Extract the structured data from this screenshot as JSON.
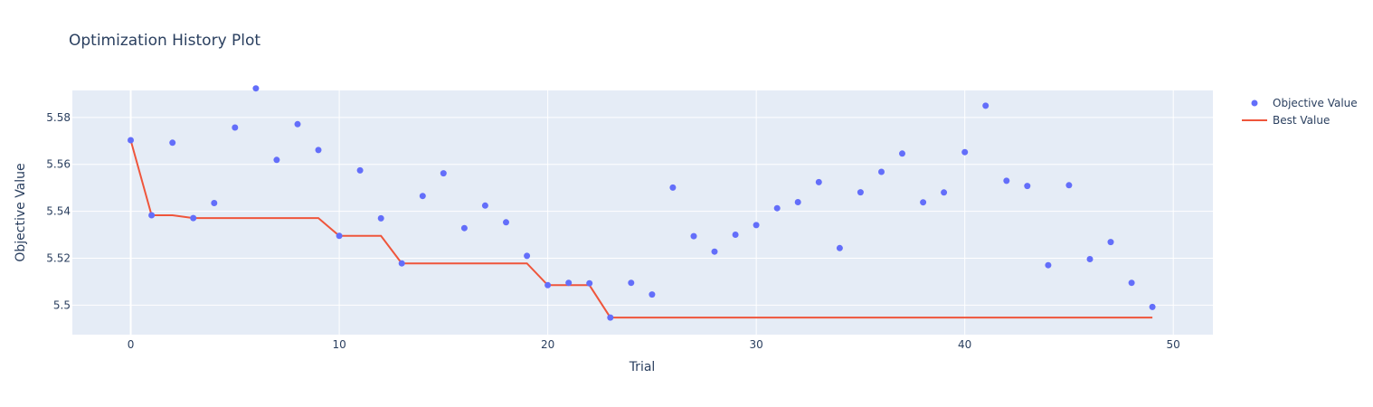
{
  "chart_data": {
    "type": "scatter",
    "title": "Optimization History Plot",
    "xlabel": "Trial",
    "ylabel": "Objective Value",
    "xlim": [
      -2.8,
      51.9
    ],
    "ylim": [
      5.4874,
      5.5915
    ],
    "xticks": [
      0,
      10,
      20,
      30,
      40,
      50
    ],
    "xtick_labels": [
      "0",
      "10",
      "20",
      "30",
      "40",
      "50"
    ],
    "yticks": [
      5.5,
      5.52,
      5.54,
      5.56,
      5.58
    ],
    "ytick_labels": [
      "5.5",
      "5.52",
      "5.54",
      "5.56",
      "5.58"
    ],
    "grid": true,
    "legend_position": "top-right",
    "series": [
      {
        "name": "Objective Value",
        "mode": "markers",
        "color": "#636efa",
        "x": [
          0,
          1,
          2,
          3,
          4,
          5,
          6,
          7,
          8,
          9,
          10,
          11,
          12,
          13,
          14,
          15,
          16,
          17,
          18,
          19,
          20,
          21,
          22,
          23,
          24,
          25,
          26,
          27,
          28,
          29,
          30,
          31,
          32,
          33,
          34,
          35,
          36,
          37,
          38,
          39,
          40,
          41,
          42,
          43,
          44,
          45,
          46,
          47,
          48,
          49
        ],
        "y": [
          5.5703,
          5.5383,
          5.5692,
          5.5371,
          5.5435,
          5.5757,
          5.5924,
          5.5619,
          5.5771,
          5.5661,
          5.5295,
          5.5574,
          5.537,
          5.5178,
          5.5465,
          5.5562,
          5.5328,
          5.5424,
          5.5353,
          5.521,
          5.5085,
          5.5095,
          5.5093,
          5.4947,
          5.5095,
          5.5045,
          5.5501,
          5.5294,
          5.5228,
          5.53,
          5.5341,
          5.5413,
          5.5439,
          5.5524,
          5.5243,
          5.5481,
          5.5568,
          5.5646,
          5.5438,
          5.548,
          5.5652,
          5.585,
          5.553,
          5.5508,
          5.517,
          5.5511,
          5.5196,
          5.5269,
          5.5095,
          5.4992
        ]
      },
      {
        "name": "Best Value",
        "mode": "lines",
        "color": "#ef553b",
        "x": [
          0,
          1,
          2,
          3,
          4,
          5,
          6,
          7,
          8,
          9,
          10,
          11,
          12,
          13,
          14,
          15,
          16,
          17,
          18,
          19,
          20,
          21,
          22,
          23,
          24,
          25,
          26,
          27,
          28,
          29,
          30,
          31,
          32,
          33,
          34,
          35,
          36,
          37,
          38,
          39,
          40,
          41,
          42,
          43,
          44,
          45,
          46,
          47,
          48,
          49
        ],
        "y": [
          5.5703,
          5.5383,
          5.5383,
          5.5371,
          5.5371,
          5.5371,
          5.5371,
          5.5371,
          5.5371,
          5.5371,
          5.5295,
          5.5295,
          5.5295,
          5.5178,
          5.5178,
          5.5178,
          5.5178,
          5.5178,
          5.5178,
          5.5178,
          5.5085,
          5.5085,
          5.5085,
          5.4947,
          5.4947,
          5.4947,
          5.4947,
          5.4947,
          5.4947,
          5.4947,
          5.4947,
          5.4947,
          5.4947,
          5.4947,
          5.4947,
          5.4947,
          5.4947,
          5.4947,
          5.4947,
          5.4947,
          5.4947,
          5.4947,
          5.4947,
          5.4947,
          5.4947,
          5.4947,
          5.4947,
          5.4947,
          5.4947,
          5.4947
        ]
      }
    ]
  }
}
